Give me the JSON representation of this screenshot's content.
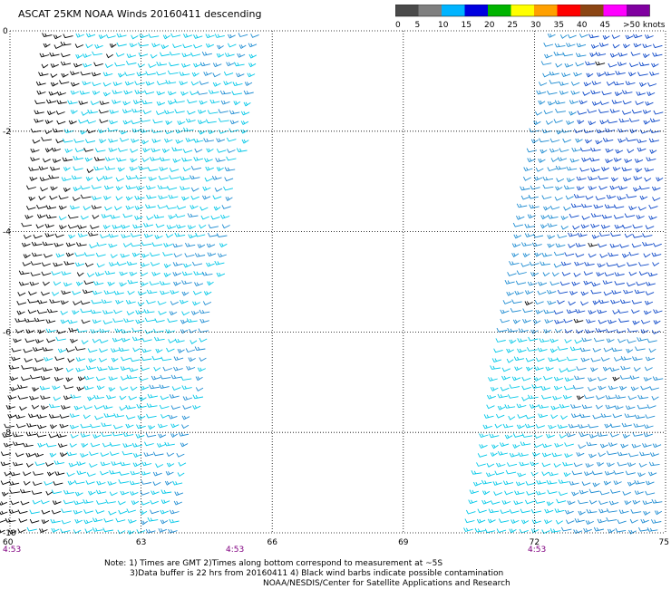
{
  "title": "ASCAT 25KM NOAA Winds 20160411 descending",
  "legend": {
    "labels": [
      "0",
      "5",
      "10",
      "15",
      "20",
      "25",
      "30",
      "35",
      "40",
      "45",
      ">50 knots"
    ],
    "colors": [
      "#4a4a4a",
      "#7f7f7f",
      "#00b4ff",
      "#0000e0",
      "#00b400",
      "#ffff00",
      "#ffa000",
      "#ff0000",
      "#8b4513",
      "#ff00ff",
      "#8000a0"
    ]
  },
  "map": {
    "lat_labels": [
      "0",
      "-2",
      "-4",
      "-6",
      "-8",
      "-10"
    ],
    "lon_labels": [
      "60",
      "63",
      "66",
      "69",
      "72",
      "75"
    ],
    "time_labels": [
      "4:53",
      "4:53",
      "4:53"
    ],
    "lon_range": [
      60,
      75
    ],
    "lat_range": [
      -10,
      0
    ],
    "grid": true,
    "barb_colors": {
      "light": "#00c8e8",
      "mid": "#1e8cd2",
      "dark": "#0a46c8",
      "contaminated": "#000000"
    }
  },
  "notes": {
    "line1": "Note: 1) Times are GMT 2)Times along bottom correspond to measurement at ~5S",
    "line2": "3)Data buffer is 22 hrs from 20160411 4) Black wind barbs indicate possible contamination",
    "line3": "NOAA/NESDIS/Center for Satellite Applications and Research"
  }
}
